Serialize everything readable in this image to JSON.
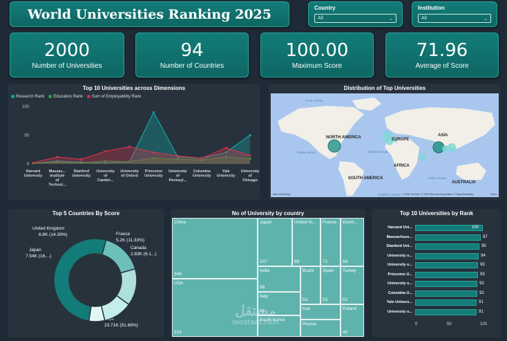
{
  "header": {
    "title": "World Universities Ranking 2025"
  },
  "slicers": [
    {
      "label": "Country",
      "value": "All"
    },
    {
      "label": "Institution",
      "value": "All"
    }
  ],
  "kpis": [
    {
      "value": "2000",
      "caption": "Number of Universities"
    },
    {
      "value": "94",
      "caption": "Number of Countries"
    },
    {
      "value": "100.00",
      "caption": "Maximum Score"
    },
    {
      "value": "71.96",
      "caption": "Average of Score"
    }
  ],
  "dimensions_chart": {
    "title": "Top 10 Universities across Dimensions",
    "legend": [
      "Research Rank",
      "Education Rank",
      "Sum of Employability Rank"
    ],
    "colors": {
      "research": "#12a5a0",
      "education": "#2f9e44",
      "employability": "#d2334a"
    }
  },
  "map": {
    "title": "Distribution of Top Universities",
    "labels": {
      "arctic": "Arctic Ocean",
      "north_america": "NORTH AMERICA",
      "europe": "EUROPE",
      "asia": "ASIA",
      "africa": "AFRICA",
      "south_america": "SOUTH AMERICA",
      "australia": "AUSTRALIA",
      "pacific": "Pacific Ocean",
      "atlantic": "Atlantic Ocean",
      "indian": "Indian Ocean",
      "southern": "Southern Ocean"
    },
    "brand": "Microsoft Bing",
    "copyright": "© 2025 TomTom, © 2025 Microsoft Corporation, © OpenStreetMap",
    "terms": "Terms"
  },
  "donut": {
    "title": "Top 5 Countries By Score",
    "labels": [
      {
        "name": "United Kingdom",
        "value": "6.6K (14.39%)"
      },
      {
        "name": "France",
        "value": "5.2K (11.33%)"
      },
      {
        "name": "Canada",
        "value": "2.83K (6.1...)"
      },
      {
        "name": "USA",
        "value": "23.71K (51.68%)"
      },
      {
        "name": "Japan",
        "value": "7.54K (16....)"
      }
    ]
  },
  "treemap": {
    "title": "No of University by country",
    "cells": [
      {
        "name": "China",
        "value": "346"
      },
      {
        "name": "USA",
        "value": "319"
      },
      {
        "name": "Japan",
        "value": "107"
      },
      {
        "name": "United Ki...",
        "value": "89"
      },
      {
        "name": "France",
        "value": "71"
      },
      {
        "name": "Germ...",
        "value": "69"
      },
      {
        "name": "India",
        "value": "68"
      },
      {
        "name": "Italy",
        "value": "66"
      },
      {
        "name": "Brazil",
        "value": "53"
      },
      {
        "name": "Spain",
        "value": "53"
      },
      {
        "name": "Turkey",
        "value": "52"
      },
      {
        "name": "South Korea",
        "value": ""
      },
      {
        "name": "Iran",
        "value": ""
      },
      {
        "name": "Poland",
        "value": "40"
      },
      {
        "name": "Russia",
        "value": ""
      }
    ]
  },
  "rank_chart": {
    "title": "Top 10 Universities by Rank",
    "axis": [
      "0",
      "50",
      "100"
    ]
  },
  "watermark": {
    "arabic": "مستقل",
    "latin": "mostaql.com"
  },
  "chart_data": [
    {
      "type": "area",
      "title": "Top 10 Universities across Dimensions",
      "categories": [
        "Harvard University",
        "Massachusetts Institute of Technology",
        "Stanford University",
        "University of Cambridge",
        "University of Oxford",
        "Princeton University",
        "University of Pennsylvania",
        "Columbia University",
        "Yale University",
        "University of Chicago"
      ],
      "tick_labels": [
        [
          "Harvard",
          "University"
        ],
        [
          "Massac...",
          "Institute",
          "of",
          "Technol..."
        ],
        [
          "Stanford",
          "University"
        ],
        [
          "University",
          "of",
          "Cambri..."
        ],
        [
          "University",
          "of Oxford"
        ],
        [
          "Princeton",
          "University"
        ],
        [
          "University",
          "of",
          "Pennsyl..."
        ],
        [
          "Columbia",
          "University"
        ],
        [
          "Yale",
          "University"
        ],
        [
          "University",
          "of",
          "Chicago"
        ]
      ],
      "series": [
        {
          "name": "Research Rank",
          "values": [
            1,
            5,
            3,
            2,
            4,
            90,
            12,
            10,
            20,
            50
          ]
        },
        {
          "name": "Education Rank",
          "values": [
            1,
            3,
            2,
            5,
            4,
            10,
            8,
            7,
            12,
            9
          ]
        },
        {
          "name": "Sum of Employability Rank",
          "values": [
            2,
            12,
            8,
            22,
            30,
            20,
            14,
            10,
            28,
            15
          ]
        }
      ],
      "ylim": [
        0,
        100
      ],
      "yticks": [
        "0",
        "50",
        "100"
      ],
      "legend": "top-left"
    },
    {
      "type": "pie",
      "title": "Top 5 Countries By Score",
      "categories": [
        "USA",
        "Japan",
        "United Kingdom",
        "France",
        "Canada"
      ],
      "values": [
        23.71,
        7.54,
        6.6,
        5.2,
        2.83
      ],
      "colors": [
        "#137c78",
        "#6dc0b9",
        "#aee0dc",
        "#c3eeeb",
        "#e2f6f4"
      ]
    },
    {
      "type": "bar",
      "title": "Top 10 Universities by Rank",
      "categories": [
        "Harvard Uni...",
        "Massachuse...",
        "Stanford Uni...",
        "University o...",
        "University o...",
        "Princeton U...",
        "University o...",
        "Columbia U...",
        "Yale Univers...",
        "University o..."
      ],
      "values": [
        100,
        97,
        95,
        94,
        93,
        93,
        92,
        92,
        91,
        91
      ],
      "xlim": [
        0,
        100
      ]
    }
  ]
}
